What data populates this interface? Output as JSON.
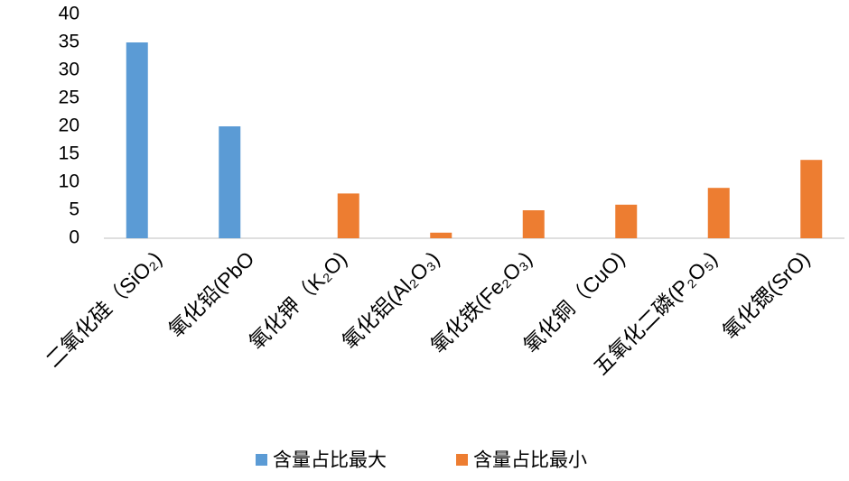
{
  "chart_data": {
    "type": "bar",
    "categories": [
      "二氧化硅（SiO₂)",
      "氧化铅(PbO",
      "氧化钾（K₂O)",
      "氧化铝(Al₂O₃)",
      "氧化铁(Fe₂O₃)",
      "氧化铜（CuO)",
      "五氧化二磷(P₂O₅)",
      "氧化锶(SrO)"
    ],
    "series": [
      {
        "name": "含量占比最大",
        "color": "#5b9bd5",
        "values": [
          35,
          20,
          null,
          null,
          null,
          null,
          null,
          null
        ]
      },
      {
        "name": "含量占比最小",
        "color": "#ed7d31",
        "values": [
          null,
          null,
          8,
          1,
          5,
          6,
          9,
          14
        ]
      }
    ],
    "ylim": [
      0,
      40
    ],
    "yticks": [
      0,
      5,
      10,
      15,
      20,
      25,
      30,
      35,
      40
    ],
    "grid": false,
    "legend": "bottom"
  }
}
